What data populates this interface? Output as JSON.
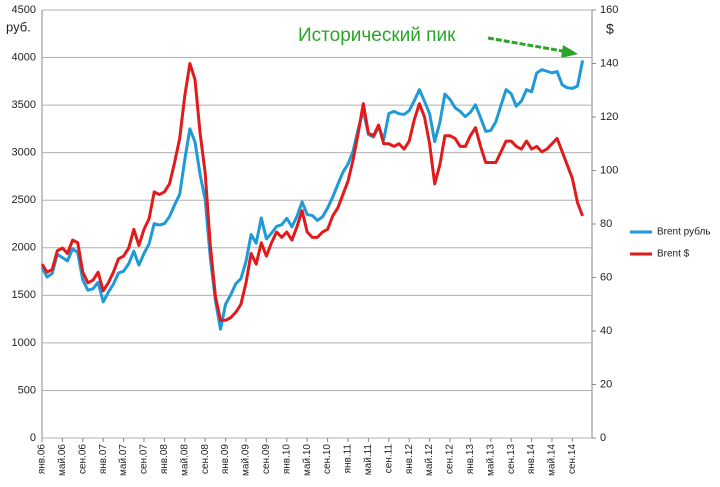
{
  "chart_data": {
    "type": "line",
    "annotation": "Исторический пик",
    "ylabel": "руб.",
    "y2label": "$",
    "categories": [
      "янв.06",
      null,
      null,
      null,
      "май.06",
      null,
      null,
      null,
      "сен.06",
      null,
      null,
      null,
      "янв.07",
      null,
      null,
      null,
      "май.07",
      null,
      null,
      null,
      "сен.07",
      null,
      null,
      null,
      "янв.08",
      null,
      null,
      null,
      "май.08",
      null,
      null,
      null,
      "сен.08",
      null,
      null,
      null,
      "янв.09",
      null,
      null,
      null,
      "май.09",
      null,
      null,
      null,
      "сен.09",
      null,
      null,
      null,
      "янв.10",
      null,
      null,
      null,
      "май.10",
      null,
      null,
      null,
      "сен.10",
      null,
      null,
      null,
      "янв.11",
      null,
      null,
      null,
      "май.11",
      null,
      null,
      null,
      "сен.11",
      null,
      null,
      null,
      "янв.12",
      null,
      null,
      null,
      "май.12",
      null,
      null,
      null,
      "сен.12",
      null,
      null,
      null,
      "янв.13",
      null,
      null,
      null,
      "май.13",
      null,
      null,
      null,
      "сен.13",
      null,
      null,
      null,
      "янв.14",
      null,
      null,
      null,
      "май.14",
      null,
      null,
      null,
      "сен.14",
      null,
      null
    ],
    "series": [
      {
        "name": "Brent рубль",
        "color": "#1f9ad6",
        "axis": "y",
        "values": [
          1796,
          1692,
          1730,
          1932,
          1897,
          1863,
          1991,
          1949,
          1662,
          1554,
          1569,
          1637,
          1431,
          1531,
          1618,
          1735,
          1754,
          1832,
          1964,
          1818,
          1940,
          2042,
          2254,
          2239,
          2254,
          2328,
          2451,
          2562,
          2927,
          3250,
          3112,
          2770,
          2505,
          1894,
          1447,
          1144,
          1408,
          1505,
          1622,
          1675,
          1856,
          2139,
          2048,
          2314,
          2094,
          2154,
          2225,
          2243,
          2310,
          2220,
          2331,
          2482,
          2349,
          2340,
          2288,
          2325,
          2418,
          2532,
          2666,
          2794,
          2880,
          3016,
          3249,
          3444,
          3192,
          3164,
          3276,
          3135,
          3410,
          3434,
          3410,
          3402,
          3441,
          3546,
          3663,
          3540,
          3410,
          3116,
          3315,
          3616,
          3560,
          3472,
          3434,
          3379,
          3424,
          3503,
          3368,
          3224,
          3234,
          3327,
          3499,
          3663,
          3619,
          3488,
          3542,
          3663,
          3640,
          3837,
          3873,
          3856,
          3839,
          3853,
          3713,
          3682,
          3676,
          3700,
          3970
        ]
      },
      {
        "name": "Brent $",
        "color": "#e31a1c",
        "axis": "y2",
        "values": [
          65,
          62,
          63,
          70,
          71,
          69,
          74,
          73,
          62,
          58,
          59,
          62,
          55,
          58,
          62,
          67,
          68,
          71,
          78,
          72,
          78,
          82,
          92,
          91,
          92,
          95,
          103,
          112,
          128,
          140,
          134,
          114,
          99,
          72,
          53,
          44,
          44,
          45,
          47,
          50,
          58,
          69,
          65,
          73,
          68,
          73,
          77,
          75,
          77,
          74,
          79,
          85,
          77,
          75,
          75,
          77,
          78,
          83,
          86,
          91,
          96,
          104,
          114,
          125,
          114,
          113,
          117,
          110,
          110,
          109,
          110,
          108,
          111,
          119,
          125,
          120,
          110,
          95,
          102,
          113,
          113,
          112,
          109,
          109,
          113,
          116,
          109,
          103,
          103,
          103,
          107,
          111,
          111,
          109,
          108,
          111,
          108,
          109,
          107,
          108,
          110,
          112,
          107,
          102,
          97,
          88,
          83
        ]
      }
    ],
    "ylim": [
      0,
      4500
    ],
    "yticks": [
      0,
      500,
      1000,
      1500,
      2000,
      2500,
      3000,
      3500,
      4000,
      4500
    ],
    "y2lim": [
      0,
      160
    ],
    "y2ticks": [
      0,
      20,
      40,
      60,
      80,
      100,
      120,
      140,
      160
    ],
    "grid": true,
    "legend": "right"
  }
}
